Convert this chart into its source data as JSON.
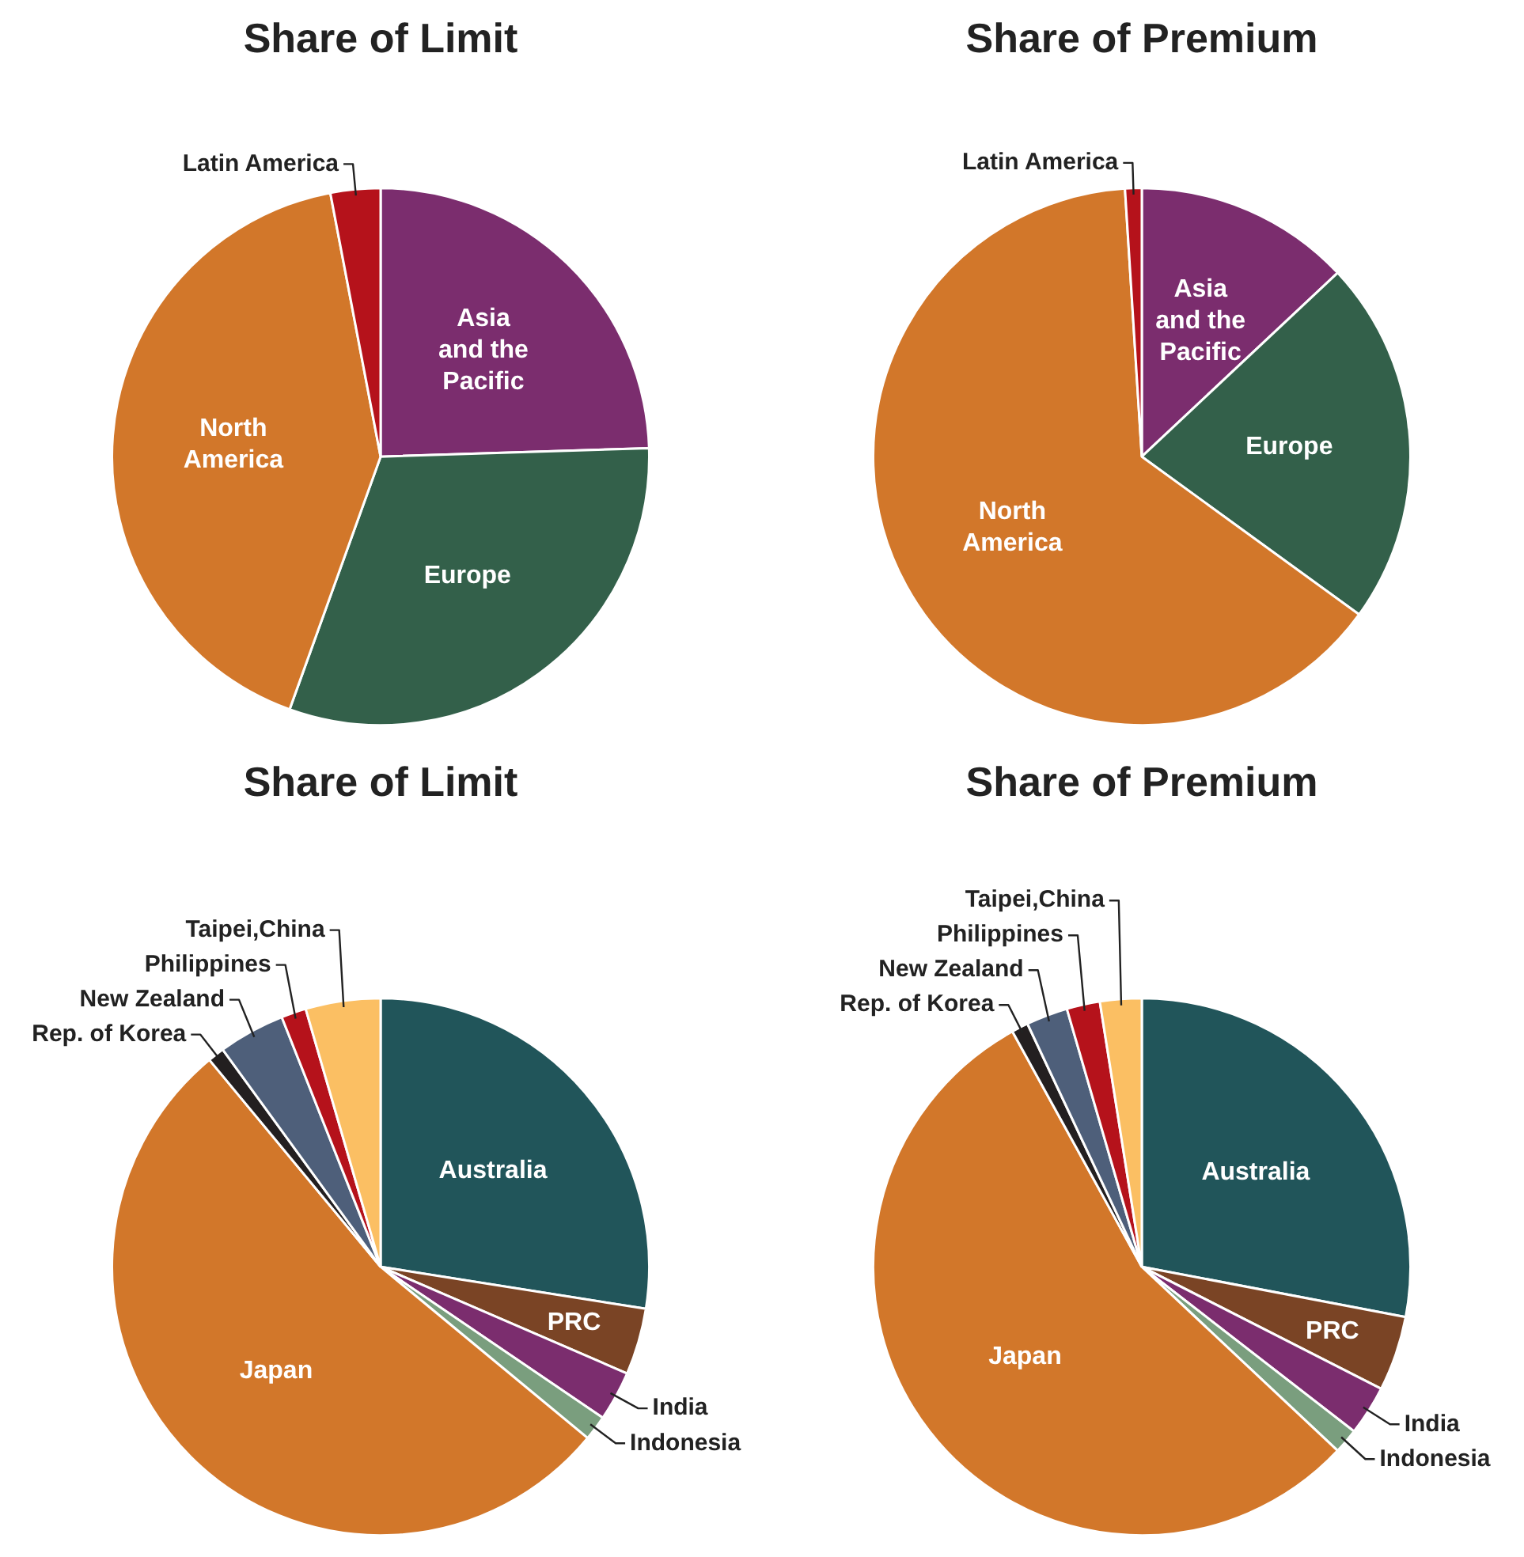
{
  "chart_data": [
    {
      "type": "pie",
      "title": "Share of Limit",
      "categories": [
        "Asia and the Pacific",
        "Europe",
        "North America",
        "Latin America"
      ],
      "values": [
        24.5,
        31,
        41.5,
        3
      ],
      "colors": [
        "#7b2d6e",
        "#33604a",
        "#d2772a",
        "#b5121b"
      ]
    },
    {
      "type": "pie",
      "title": "Share of Premium",
      "categories": [
        "Asia and the Pacific",
        "Europe",
        "North America",
        "Latin America"
      ],
      "values": [
        13,
        22,
        64,
        1
      ],
      "colors": [
        "#7b2d6e",
        "#33604a",
        "#d2772a",
        "#b5121b"
      ]
    },
    {
      "type": "pie",
      "title": "Share of Limit",
      "categories": [
        "Australia",
        "PRC",
        "India",
        "Indonesia",
        "Japan",
        "Rep. of Korea",
        "New Zealand",
        "Philippines",
        "Taipei,China"
      ],
      "values": [
        27.5,
        4,
        3,
        1.5,
        53,
        1,
        4,
        1.5,
        4.5
      ],
      "colors": [
        "#21555a",
        "#7a4425",
        "#7b2d6e",
        "#7a9e7e",
        "#d2772a",
        "#231f20",
        "#4e5f7a",
        "#b5121b",
        "#fbbf63"
      ]
    },
    {
      "type": "pie",
      "title": "Share of Premium",
      "categories": [
        "Australia",
        "PRC",
        "India",
        "Indonesia",
        "Japan",
        "Rep. of Korea",
        "New Zealand",
        "Philippines",
        "Taipei,China"
      ],
      "values": [
        28,
        4.5,
        3,
        1.5,
        55,
        1,
        2.5,
        2,
        2.5
      ],
      "colors": [
        "#21555a",
        "#7a4425",
        "#7b2d6e",
        "#7a9e7e",
        "#d2772a",
        "#231f20",
        "#4e5f7a",
        "#b5121b",
        "#fbbf63"
      ]
    }
  ]
}
